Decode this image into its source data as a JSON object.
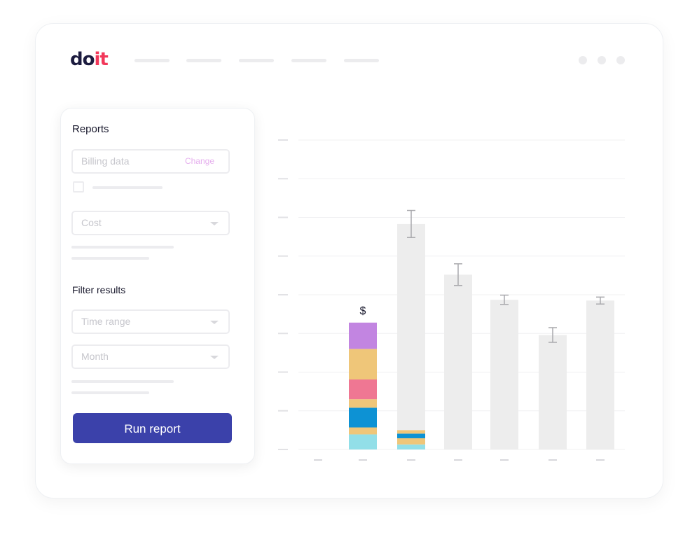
{
  "app": {
    "logo_text_1": "do",
    "logo_text_2": "it",
    "logo_colors": {
      "primary": "#1c1b3f",
      "accent": "#f2385a"
    }
  },
  "sidebar": {
    "reports_heading": "Reports",
    "billing_placeholder": "Billing data",
    "change_label": "Change",
    "metric_placeholder": "Cost",
    "filter_heading": "Filter results",
    "time_range_placeholder": "Time range",
    "month_placeholder": "Month",
    "run_button_label": "Run report",
    "run_button_color": "#3b41aa"
  },
  "chart_data": {
    "type": "bar",
    "grid": true,
    "ylim": [
      0,
      8
    ],
    "annotation": "$",
    "segment_colors": [
      "#92dfe8",
      "#efc679",
      "#0d92d4",
      "#efc679",
      "#ef7793",
      "#efc679",
      "#c285e1"
    ],
    "highlighted_bar": {
      "category_index": 1,
      "segments": [
        0.39,
        0.18,
        0.51,
        0.22,
        0.51,
        0.79,
        0.68
      ]
    },
    "bars": [
      {
        "value": 0,
        "error": null,
        "segments": []
      },
      {
        "value": 3.28,
        "error": null,
        "segments": [
          0.39,
          0.18,
          0.51,
          0.22,
          0.51,
          0.79,
          0.68
        ]
      },
      {
        "value": 5.83,
        "error": 0.35,
        "segments": [
          0.13,
          0.16,
          0.12,
          0.09
        ]
      },
      {
        "value": 4.52,
        "error": 0.28,
        "segments": []
      },
      {
        "value": 3.87,
        "error": 0.12,
        "segments": []
      },
      {
        "value": 2.96,
        "error": 0.19,
        "segments": []
      },
      {
        "value": 3.85,
        "error": 0.09,
        "segments": []
      }
    ]
  }
}
